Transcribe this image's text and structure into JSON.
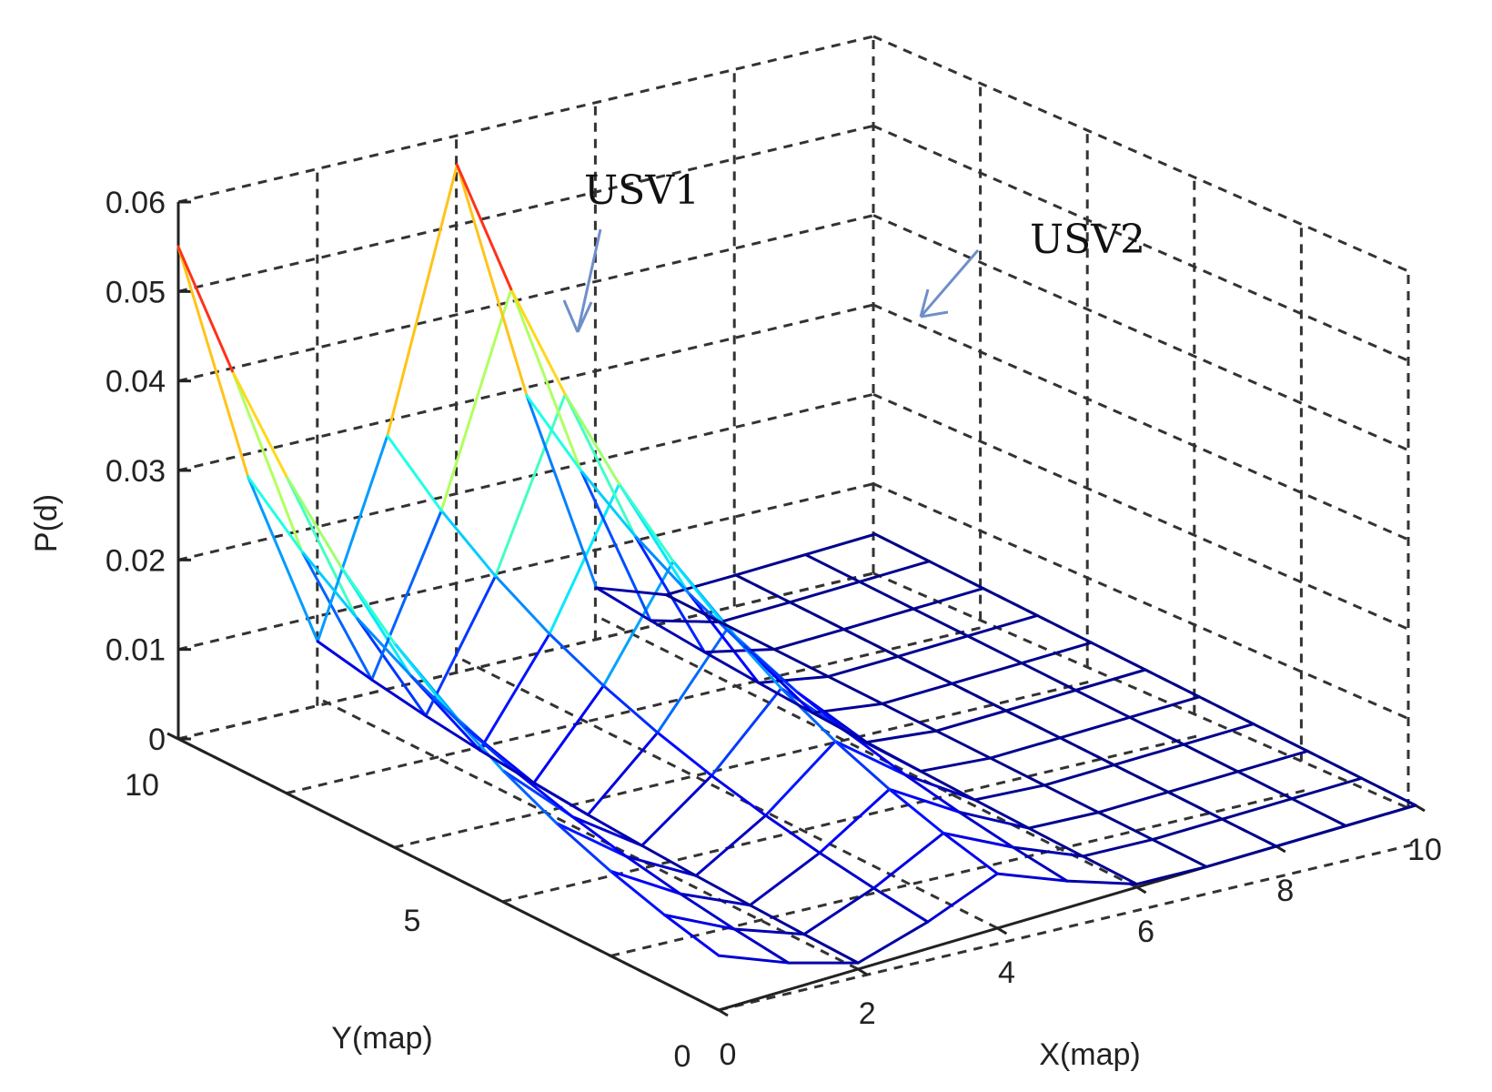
{
  "chart_data": {
    "type": "surface-mesh",
    "x": [
      0,
      1,
      2,
      3,
      4,
      5,
      6,
      7,
      8,
      9,
      10
    ],
    "y": [
      0,
      1,
      2,
      3,
      4,
      5,
      6,
      7,
      8,
      9,
      10
    ],
    "z_peak_lines": [
      {
        "at_x": 0,
        "peak": 0.055
      },
      {
        "at_x": 4,
        "peak": 0.055
      }
    ],
    "xlabel": "X(map)",
    "ylabel": "Y(map)",
    "zlabel": "P(d)",
    "xlim": [
      0,
      10
    ],
    "ylim": [
      0,
      10
    ],
    "zlim": [
      0,
      0.06
    ],
    "x_ticks": [
      "0",
      "2",
      "4",
      "6",
      "8",
      "10"
    ],
    "y_ticks": [
      "0",
      "5",
      "10"
    ],
    "z_ticks": [
      "0",
      "0.01",
      "0.02",
      "0.03",
      "0.04",
      "0.05",
      "0.06"
    ],
    "grid": true,
    "colormap": "jet",
    "annotations": [
      "USV1",
      "USV2"
    ]
  },
  "colors": {
    "low": "#3b3bdc",
    "mid": "#33d6e6",
    "high": "#e63a2a"
  }
}
